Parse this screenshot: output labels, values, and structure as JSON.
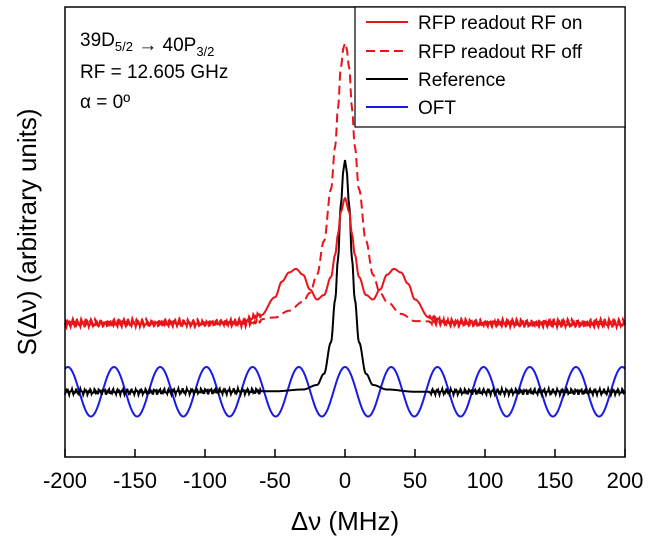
{
  "chart_data": {
    "type": "line",
    "xlabel": "Δν (MHz)",
    "ylabel": "S(Δν) (arbitrary units)",
    "xlim": [
      -200,
      200
    ],
    "ylim": [
      0,
      1
    ],
    "xticks": [
      "-200",
      "-150",
      "-100",
      "-50",
      "0",
      "50",
      "100",
      "150",
      "200"
    ],
    "grid": false,
    "legend_position": "top-right",
    "annotations": {
      "transition": "39D5/2 → 40P3/2",
      "rf": "RF = 12.605 GHz",
      "alpha": "α = 0º"
    },
    "series": [
      {
        "name": "RFP readout RF on",
        "color": "#e8141a",
        "style": "solid",
        "x": [
          -200,
          -150,
          -100,
          -75,
          -60,
          -50,
          -45,
          -40,
          -35,
          -30,
          -25,
          -20,
          -15,
          -10,
          -7,
          -5,
          -3,
          0,
          3,
          5,
          7,
          10,
          15,
          20,
          25,
          30,
          35,
          40,
          45,
          50,
          60,
          75,
          100,
          150,
          200
        ],
        "y": [
          0.295,
          0.296,
          0.297,
          0.3,
          0.315,
          0.355,
          0.39,
          0.41,
          0.418,
          0.405,
          0.372,
          0.35,
          0.36,
          0.4,
          0.45,
          0.495,
          0.545,
          0.575,
          0.545,
          0.495,
          0.45,
          0.4,
          0.36,
          0.35,
          0.372,
          0.405,
          0.418,
          0.41,
          0.385,
          0.35,
          0.31,
          0.298,
          0.296,
          0.295,
          0.295
        ]
      },
      {
        "name": "RFP readout RF off",
        "color": "#e8141a",
        "style": "dashed",
        "x": [
          -200,
          -150,
          -100,
          -75,
          -50,
          -40,
          -30,
          -25,
          -20,
          -15,
          -10,
          -7,
          -5,
          -3,
          -1,
          0,
          1,
          3,
          5,
          7,
          10,
          15,
          20,
          25,
          30,
          40,
          50,
          75,
          100,
          150,
          200
        ],
        "y": [
          0.3,
          0.3,
          0.298,
          0.296,
          0.31,
          0.325,
          0.345,
          0.365,
          0.405,
          0.48,
          0.595,
          0.69,
          0.775,
          0.865,
          0.91,
          0.92,
          0.91,
          0.865,
          0.775,
          0.69,
          0.595,
          0.48,
          0.405,
          0.365,
          0.345,
          0.318,
          0.302,
          0.3,
          0.3,
          0.3,
          0.3
        ]
      },
      {
        "name": "Reference",
        "color": "#000000",
        "style": "solid",
        "x": [
          -200,
          -150,
          -100,
          -50,
          -30,
          -20,
          -15,
          -10,
          -7,
          -5,
          -3,
          -1,
          0,
          1,
          3,
          5,
          7,
          10,
          15,
          20,
          30,
          50,
          100,
          150,
          200
        ],
        "y": [
          0.145,
          0.145,
          0.146,
          0.146,
          0.15,
          0.16,
          0.185,
          0.255,
          0.35,
          0.44,
          0.56,
          0.64,
          0.66,
          0.64,
          0.56,
          0.44,
          0.35,
          0.255,
          0.185,
          0.16,
          0.15,
          0.145,
          0.145,
          0.145,
          0.145
        ]
      },
      {
        "name": "OFT",
        "color": "#1a1ae6",
        "style": "solid",
        "oscillation": {
          "period_mhz": 33,
          "center": 0.145,
          "amplitude": 0.055,
          "peak_at": 0
        }
      }
    ]
  }
}
